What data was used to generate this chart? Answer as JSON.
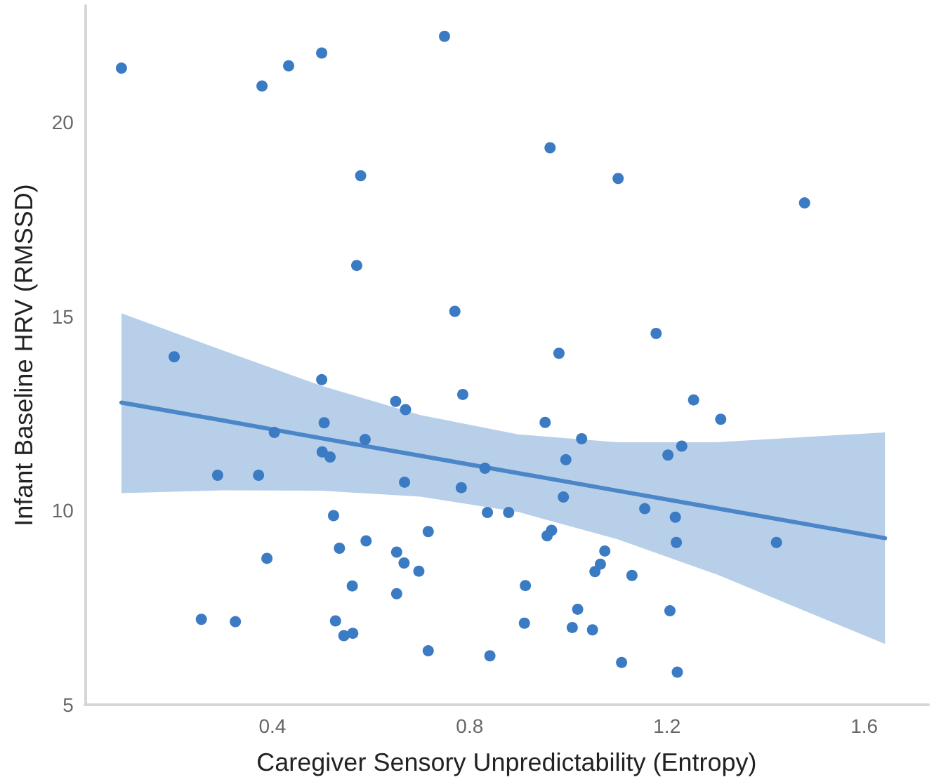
{
  "chart_data": {
    "type": "scatter",
    "xlabel": "Caregiver Sensory Unpredictability (Entropy)",
    "ylabel": "Infant Baseline HRV (RMSSD)",
    "xlim": [
      0.02,
      1.73
    ],
    "ylim": [
      5,
      23
    ],
    "xticks": [
      0.4,
      0.8,
      1.2,
      1.6
    ],
    "yticks": [
      5,
      10,
      15,
      20
    ],
    "grid": false,
    "series": [
      {
        "type": "line",
        "color": "#4a86c8",
        "marker": "none",
        "line_style": "solid",
        "x": [
          0.094,
          0.3,
          0.5,
          0.7,
          0.9,
          1.1,
          1.3,
          1.5,
          1.642
        ],
        "values": [
          12.78,
          12.32,
          11.86,
          11.41,
          10.96,
          10.51,
          10.06,
          9.61,
          9.29
        ],
        "lower": [
          10.45,
          10.52,
          10.51,
          10.36,
          9.96,
          9.26,
          8.36,
          7.31,
          6.57
        ],
        "upper": [
          15.08,
          14.12,
          13.21,
          12.46,
          11.96,
          11.76,
          11.76,
          11.91,
          12.01
        ]
      },
      {
        "color": "#3b7bc4",
        "marker": "circle",
        "x": [
          0.094,
          0.379,
          0.433,
          0.5,
          0.749,
          0.579,
          0.571,
          0.77,
          0.201,
          0.5,
          0.963,
          1.101,
          1.479,
          1.178,
          0.981,
          0.65,
          0.67,
          0.786,
          0.505,
          0.404,
          0.588,
          0.501,
          0.517,
          0.289,
          0.372,
          0.668,
          0.783,
          0.524,
          0.716,
          0.536,
          0.59,
          0.389,
          0.652,
          0.667,
          0.697,
          0.562,
          0.652,
          0.256,
          0.325,
          0.528,
          0.545,
          0.563,
          0.716,
          1.254,
          1.309,
          0.953,
          1.027,
          1.23,
          1.202,
          0.995,
          0.831,
          0.99,
          0.836,
          0.879,
          1.155,
          1.217,
          0.966,
          0.957,
          1.219,
          1.422,
          1.074,
          1.065,
          1.054,
          1.129,
          0.913,
          1.019,
          1.206,
          0.911,
          1.008,
          1.049,
          0.841,
          1.108,
          1.221
        ],
        "values": [
          21.39,
          20.93,
          21.45,
          21.78,
          22.21,
          18.62,
          16.31,
          15.13,
          13.96,
          13.37,
          19.34,
          18.55,
          17.92,
          14.56,
          14.05,
          12.81,
          12.6,
          12.99,
          12.26,
          12.01,
          11.83,
          11.51,
          11.38,
          10.91,
          10.91,
          10.73,
          10.59,
          9.87,
          9.46,
          9.03,
          9.22,
          8.77,
          8.93,
          8.65,
          8.44,
          8.06,
          7.86,
          7.2,
          7.14,
          7.16,
          6.78,
          6.84,
          6.39,
          12.85,
          12.35,
          12.27,
          11.85,
          11.66,
          11.43,
          11.31,
          11.09,
          10.35,
          9.95,
          9.95,
          10.05,
          9.83,
          9.49,
          9.35,
          9.18,
          9.18,
          8.96,
          8.62,
          8.43,
          8.33,
          8.07,
          7.46,
          7.42,
          7.1,
          6.99,
          6.93,
          6.26,
          6.09,
          5.84
        ]
      }
    ]
  }
}
